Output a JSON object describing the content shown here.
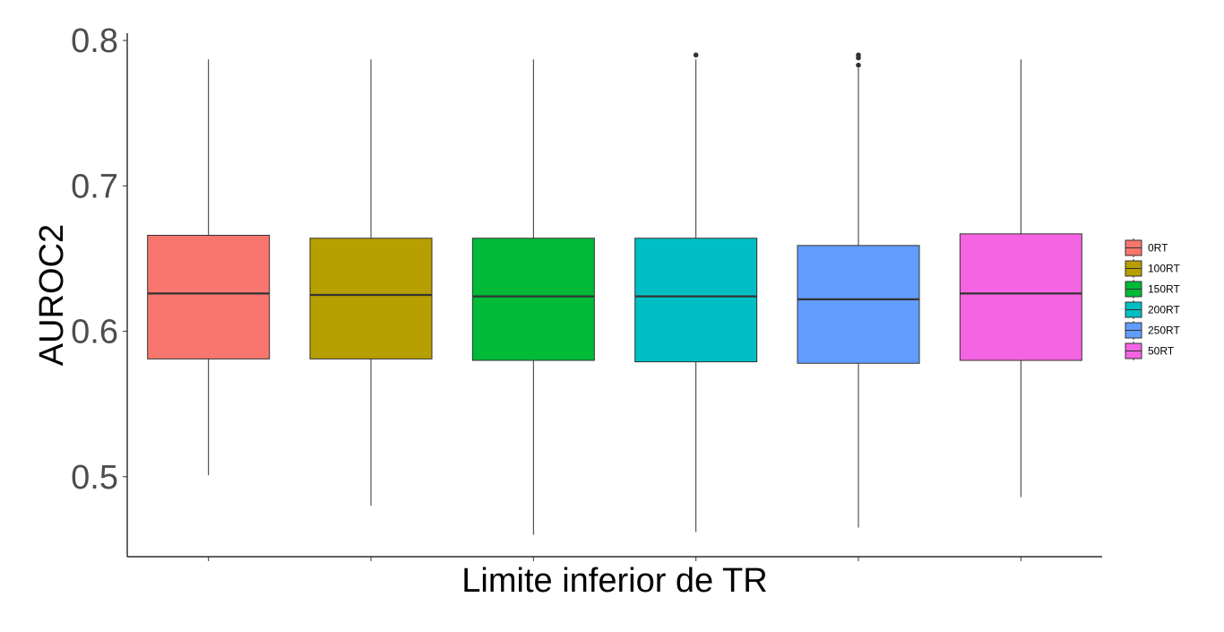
{
  "chart_data": {
    "type": "boxplot",
    "title": "",
    "xlabel": "Limite inferior de TR",
    "ylabel": "AUROC2",
    "ylim": [
      0.445,
      0.805
    ],
    "yticks": [
      0.5,
      0.6,
      0.7,
      0.8
    ],
    "ytick_labels": [
      "0.5",
      "0.6",
      "0.7",
      "0.8"
    ],
    "grid": false,
    "legend_position": "right",
    "show_x_tick_labels": false,
    "series": [
      {
        "name": "0RT",
        "color": "#F8766D",
        "min": 0.501,
        "q1": 0.581,
        "median": 0.626,
        "q3": 0.666,
        "max": 0.787,
        "outliers": []
      },
      {
        "name": "100RT",
        "color": "#B79F00",
        "min": 0.48,
        "q1": 0.581,
        "median": 0.625,
        "q3": 0.664,
        "max": 0.787,
        "outliers": []
      },
      {
        "name": "150RT",
        "color": "#00BA38",
        "min": 0.46,
        "q1": 0.58,
        "median": 0.624,
        "q3": 0.664,
        "max": 0.787,
        "outliers": []
      },
      {
        "name": "200RT",
        "color": "#00BFC4",
        "min": 0.462,
        "q1": 0.579,
        "median": 0.624,
        "q3": 0.664,
        "max": 0.787,
        "outliers": [
          0.79
        ]
      },
      {
        "name": "250RT",
        "color": "#619CFF",
        "min": 0.465,
        "q1": 0.578,
        "median": 0.622,
        "q3": 0.659,
        "max": 0.781,
        "outliers": [
          0.79,
          0.788,
          0.783
        ]
      },
      {
        "name": "50RT",
        "color": "#F564E3",
        "min": 0.486,
        "q1": 0.58,
        "median": 0.626,
        "q3": 0.667,
        "max": 0.787,
        "outliers": []
      }
    ]
  }
}
